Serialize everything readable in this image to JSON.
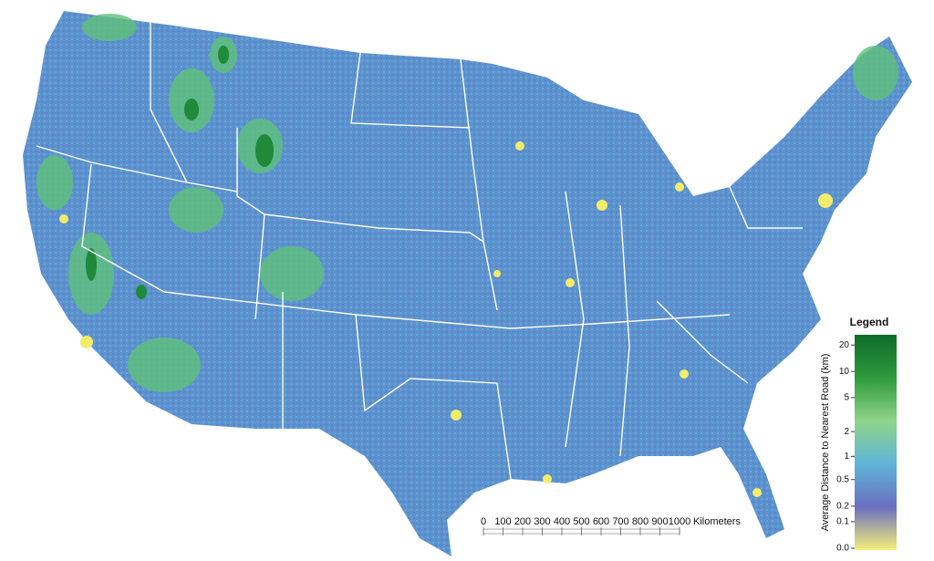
{
  "legend": {
    "title": "Legend",
    "label": "Average Distance to Nearest Road (km)",
    "ticks": [
      20,
      10,
      5,
      2,
      1,
      0.5,
      0.2,
      0.1,
      {
        "value": 0,
        "label": "0.0"
      }
    ],
    "colors": [
      "#f5f07a",
      "#6a6fc0",
      "#5fb4d8",
      "#8fd58a",
      "#2e9a3e",
      "#0d6b2a"
    ]
  },
  "scale_bar": {
    "ticks": [
      0,
      100,
      200,
      300,
      400,
      500,
      600,
      700,
      800,
      900,
      1000
    ],
    "unit": "Kilometers"
  }
}
